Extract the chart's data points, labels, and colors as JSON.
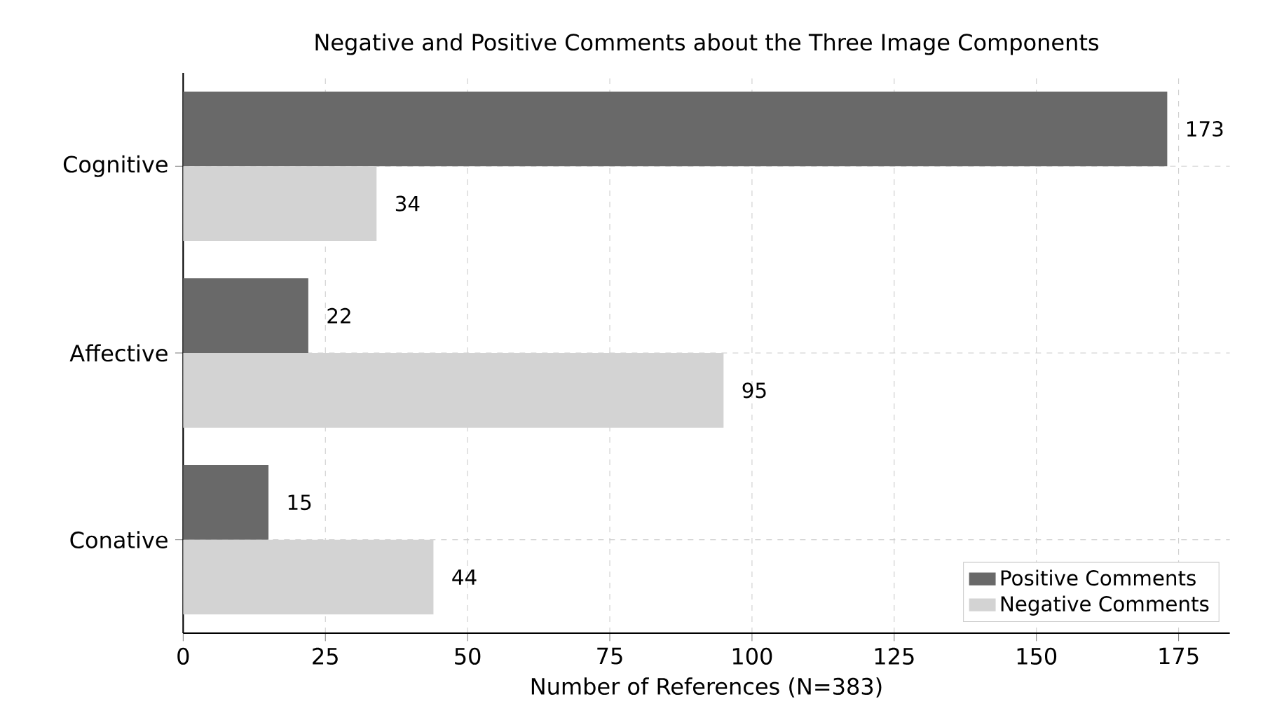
{
  "chart_data": {
    "type": "bar",
    "orientation": "horizontal",
    "title": "Negative and Positive Comments about the Three Image Components",
    "xlabel": "Number of References (N=383)",
    "categories": [
      "Cognitive",
      "Affective",
      "Conative"
    ],
    "series": [
      {
        "name": "Positive Comments",
        "color": "#696969",
        "values": [
          173,
          22,
          15
        ]
      },
      {
        "name": "Negative Comments",
        "color": "#d3d3d3",
        "values": [
          34,
          95,
          44
        ]
      }
    ],
    "xlim": [
      0,
      184
    ],
    "xticks": [
      0,
      25,
      50,
      75,
      100,
      125,
      150,
      175
    ],
    "grid": true,
    "legend": "bottom right",
    "data_labels": true
  }
}
